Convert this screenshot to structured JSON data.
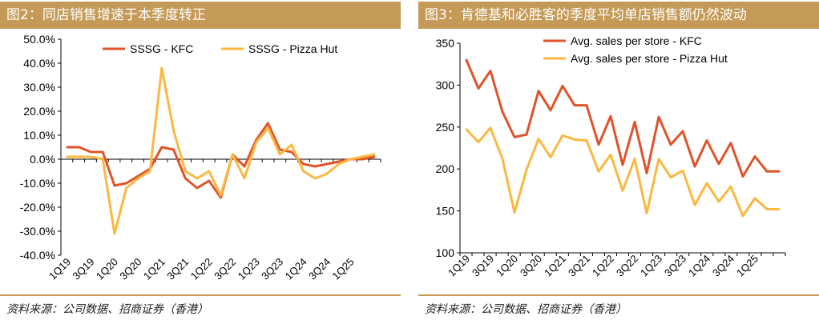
{
  "colors": {
    "kfc": "#e0532a",
    "pizza_hut": "#fbb841",
    "title_bar": "#c49a56"
  },
  "chart_data": [
    {
      "type": "line",
      "title": "图2：同店销售增速于本季度转正",
      "source": "资料来源：公司数据、招商证券（香港）",
      "categories": [
        "1Q19",
        "2Q19",
        "3Q19",
        "4Q19",
        "1Q20",
        "2Q20",
        "3Q20",
        "4Q20",
        "1Q21",
        "2Q21",
        "3Q21",
        "4Q21",
        "1Q22",
        "2Q22",
        "3Q22",
        "4Q22",
        "1Q23",
        "2Q23",
        "3Q23",
        "4Q23",
        "1Q24",
        "2Q24",
        "3Q24",
        "4Q24",
        "1Q25",
        "2Q25",
        "3Q25"
      ],
      "tick_labels": [
        "1Q19",
        "3Q19",
        "1Q20",
        "3Q20",
        "1Q21",
        "3Q21",
        "1Q22",
        "3Q22",
        "1Q23",
        "3Q23",
        "1Q24",
        "3Q24",
        "1Q25"
      ],
      "ylim": [
        -40,
        50
      ],
      "ytick_labels": [
        "50.0%",
        "40.0%",
        "30.0%",
        "20.0%",
        "10.0%",
        "0.0%",
        "-10.0%",
        "-20.0%",
        "-30.0%",
        "-40.0%"
      ],
      "series": [
        {
          "name": "SSSG - KFC",
          "values": [
            5,
            5,
            3,
            3,
            -11,
            -10,
            -7,
            -4,
            5,
            4,
            -8,
            -12,
            -9,
            -16,
            2,
            -3,
            8,
            15,
            4,
            3,
            -2,
            -3,
            -2,
            -1,
            0,
            0,
            1
          ]
        },
        {
          "name": "SSSG - Pizza Hut",
          "values": [
            1,
            1,
            1,
            0,
            -31,
            -12,
            -8,
            -5,
            38,
            12,
            -5,
            -8,
            -5,
            -15,
            2,
            -8,
            7,
            13,
            2,
            6,
            -5,
            -8,
            -6,
            -2,
            0,
            1,
            2
          ]
        }
      ]
    },
    {
      "type": "line",
      "title": "图3：肯德基和必胜客的季度平均单店销售额仍然波动",
      "source": "资料来源：公司数据、招商证券（香港）",
      "categories": [
        "1Q19",
        "2Q19",
        "3Q19",
        "4Q19",
        "1Q20",
        "2Q20",
        "3Q20",
        "4Q20",
        "1Q21",
        "2Q21",
        "3Q21",
        "4Q21",
        "1Q22",
        "2Q22",
        "3Q22",
        "4Q22",
        "1Q23",
        "2Q23",
        "3Q23",
        "4Q23",
        "1Q24",
        "2Q24",
        "3Q24",
        "4Q24",
        "1Q25",
        "2Q25",
        "3Q25"
      ],
      "tick_labels": [
        "1Q19",
        "3Q19",
        "1Q20",
        "3Q20",
        "1Q21",
        "3Q21",
        "1Q22",
        "3Q22",
        "1Q23",
        "3Q23",
        "1Q24",
        "3Q24",
        "1Q25"
      ],
      "ylim": [
        100,
        350
      ],
      "ytick_labels": [
        "350",
        "300",
        "250",
        "200",
        "150",
        "100"
      ],
      "series": [
        {
          "name": "Avg. sales per store - KFC",
          "values": [
            330,
            296,
            317,
            268,
            238,
            241,
            293,
            270,
            299,
            276,
            276,
            229,
            263,
            205,
            256,
            195,
            262,
            229,
            245,
            203,
            234,
            206,
            231,
            191,
            215,
            197,
            197
          ]
        },
        {
          "name": "Avg. sales per store - Pizza Hut",
          "values": [
            247,
            232,
            249,
            212,
            148,
            199,
            236,
            214,
            240,
            235,
            234,
            197,
            217,
            174,
            212,
            147,
            212,
            190,
            198,
            157,
            183,
            161,
            179,
            144,
            165,
            152,
            152
          ]
        }
      ]
    }
  ]
}
